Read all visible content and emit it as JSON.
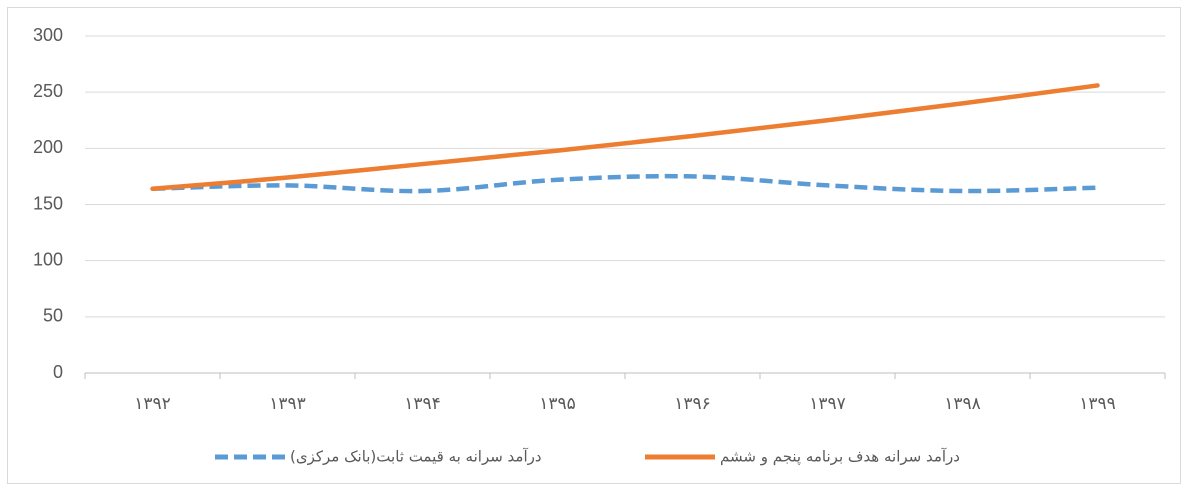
{
  "chart_data": {
    "type": "line",
    "categories": [
      "۱۳۹۲",
      "۱۳۹۳",
      "۱۳۹۴",
      "۱۳۹۵",
      "۱۳۹۶",
      "۱۳۹۷",
      "۱۳۹۸",
      "۱۳۹۹"
    ],
    "series": [
      {
        "name": "درآمد سرانه به قیمت ثابت(بانک مرکزی)",
        "color": "#5b9bd5",
        "dashed": true,
        "smooth": true,
        "values": [
          164,
          167,
          162,
          172,
          175,
          167,
          162,
          165
        ]
      },
      {
        "name": "درآمد سرانه هدف برنامه پنجم و ششم",
        "color": "#ed7d31",
        "dashed": false,
        "smooth": true,
        "values": [
          164,
          174,
          186,
          198,
          211,
          225,
          240,
          256
        ]
      }
    ],
    "ylim": [
      0,
      300
    ],
    "yticks": [
      0,
      50,
      100,
      150,
      200,
      250,
      300
    ],
    "grid": true,
    "legend": "bottom"
  }
}
